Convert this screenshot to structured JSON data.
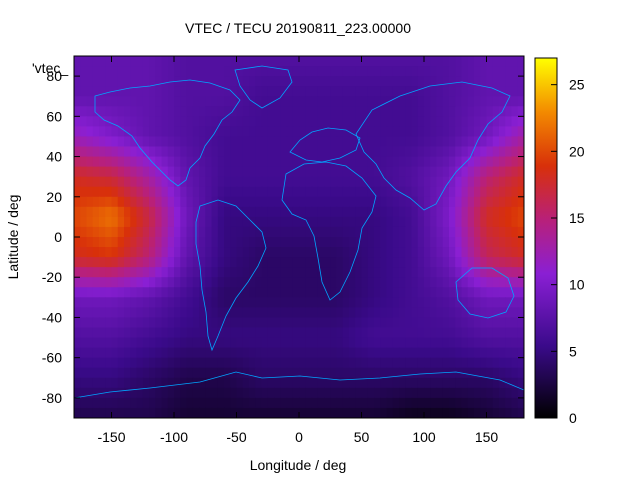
{
  "chart_data": {
    "type": "heatmap",
    "title": "VTEC / TECU 20190811_223.00000",
    "xlabel": "Longitude / deg",
    "ylabel": "Latitude / deg",
    "xlim": [
      -180,
      180
    ],
    "ylim": [
      -90,
      90
    ],
    "xticks": [
      "-150",
      "-100",
      "-50",
      "0",
      "50",
      "100",
      "150"
    ],
    "xtick_values": [
      -150,
      -100,
      -50,
      0,
      50,
      100,
      150
    ],
    "yticks": [
      "80",
      "60",
      "40",
      "20",
      "0",
      "-20",
      "-40",
      "-60",
      "-80"
    ],
    "ytick_values": [
      80,
      60,
      40,
      20,
      0,
      -20,
      -40,
      -60,
      -80
    ],
    "overlay_label": "'vtec_",
    "colorbar": {
      "min": 0,
      "max": 27,
      "ticks": [
        "0",
        "5",
        "10",
        "15",
        "20",
        "25"
      ],
      "tick_values": [
        0,
        5,
        10,
        15,
        20,
        25
      ],
      "palette": "black-purple-red-orange-yellow"
    },
    "lon": [
      -180,
      -150,
      -120,
      -90,
      -60,
      -30,
      0,
      30,
      60,
      90,
      120,
      150,
      180
    ],
    "lat": [
      90,
      70,
      50,
      30,
      10,
      -10,
      -30,
      -50,
      -70,
      -90
    ],
    "values": [
      [
        8,
        8,
        8,
        7,
        7,
        7,
        7,
        7,
        7,
        7,
        7,
        8,
        8
      ],
      [
        8,
        8,
        8,
        7,
        7,
        6,
        6,
        6,
        6,
        6,
        7,
        8,
        8
      ],
      [
        12,
        10,
        8,
        7,
        6,
        6,
        6,
        6,
        6,
        6,
        7,
        9,
        13
      ],
      [
        18,
        17,
        13,
        8,
        6,
        6,
        6,
        6,
        6,
        7,
        9,
        15,
        18
      ],
      [
        20,
        22,
        17,
        9,
        5,
        5,
        5,
        5,
        5,
        6,
        10,
        18,
        20
      ],
      [
        18,
        19,
        15,
        8,
        5,
        4,
        4,
        4,
        5,
        6,
        9,
        16,
        18
      ],
      [
        9,
        9,
        8,
        6,
        4,
        4,
        4,
        4,
        5,
        6,
        7,
        9,
        9
      ],
      [
        7,
        7,
        6,
        5,
        5,
        5,
        5,
        5,
        6,
        6,
        6,
        7,
        7
      ],
      [
        5,
        5,
        4,
        3,
        3,
        4,
        4,
        4,
        4,
        4,
        4,
        4,
        5
      ],
      [
        3,
        3,
        3,
        2,
        2,
        2,
        2,
        2,
        2,
        1,
        1,
        2,
        3
      ]
    ]
  }
}
